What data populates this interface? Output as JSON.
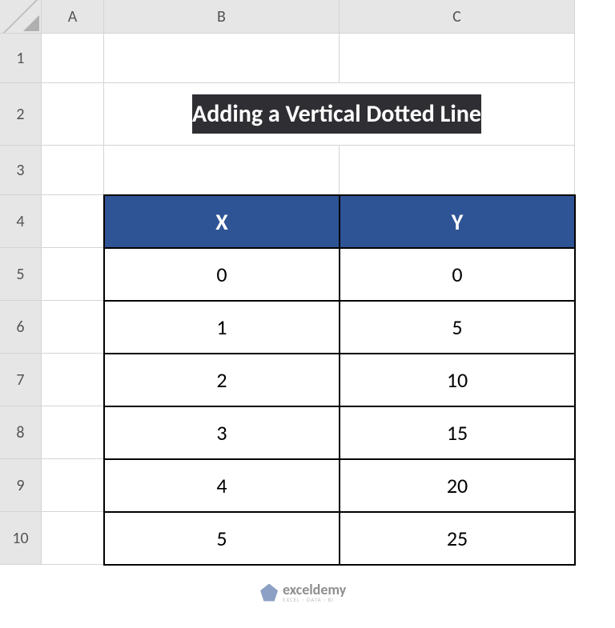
{
  "columns": [
    "A",
    "B",
    "C"
  ],
  "rows": [
    "1",
    "2",
    "3",
    "4",
    "5",
    "6",
    "7",
    "8",
    "9",
    "10"
  ],
  "title": "Adding a Vertical Dotted Line",
  "table": {
    "headers": {
      "x": "X",
      "y": "Y"
    },
    "rows": [
      {
        "x": "0",
        "y": "0"
      },
      {
        "x": "1",
        "y": "5"
      },
      {
        "x": "2",
        "y": "10"
      },
      {
        "x": "3",
        "y": "15"
      },
      {
        "x": "4",
        "y": "20"
      },
      {
        "x": "5",
        "y": "25"
      }
    ],
    "header_bg": "#2f5496",
    "header_fg": "#ffffff",
    "cell_bg": "#ffffff",
    "cell_fg": "#000000",
    "border_color": "#000000"
  },
  "title_style": {
    "bg": "#2e2e33",
    "fg": "#ffffff"
  },
  "watermark": {
    "brand": "exceldemy",
    "tagline": "EXCEL · DATA · BI"
  }
}
